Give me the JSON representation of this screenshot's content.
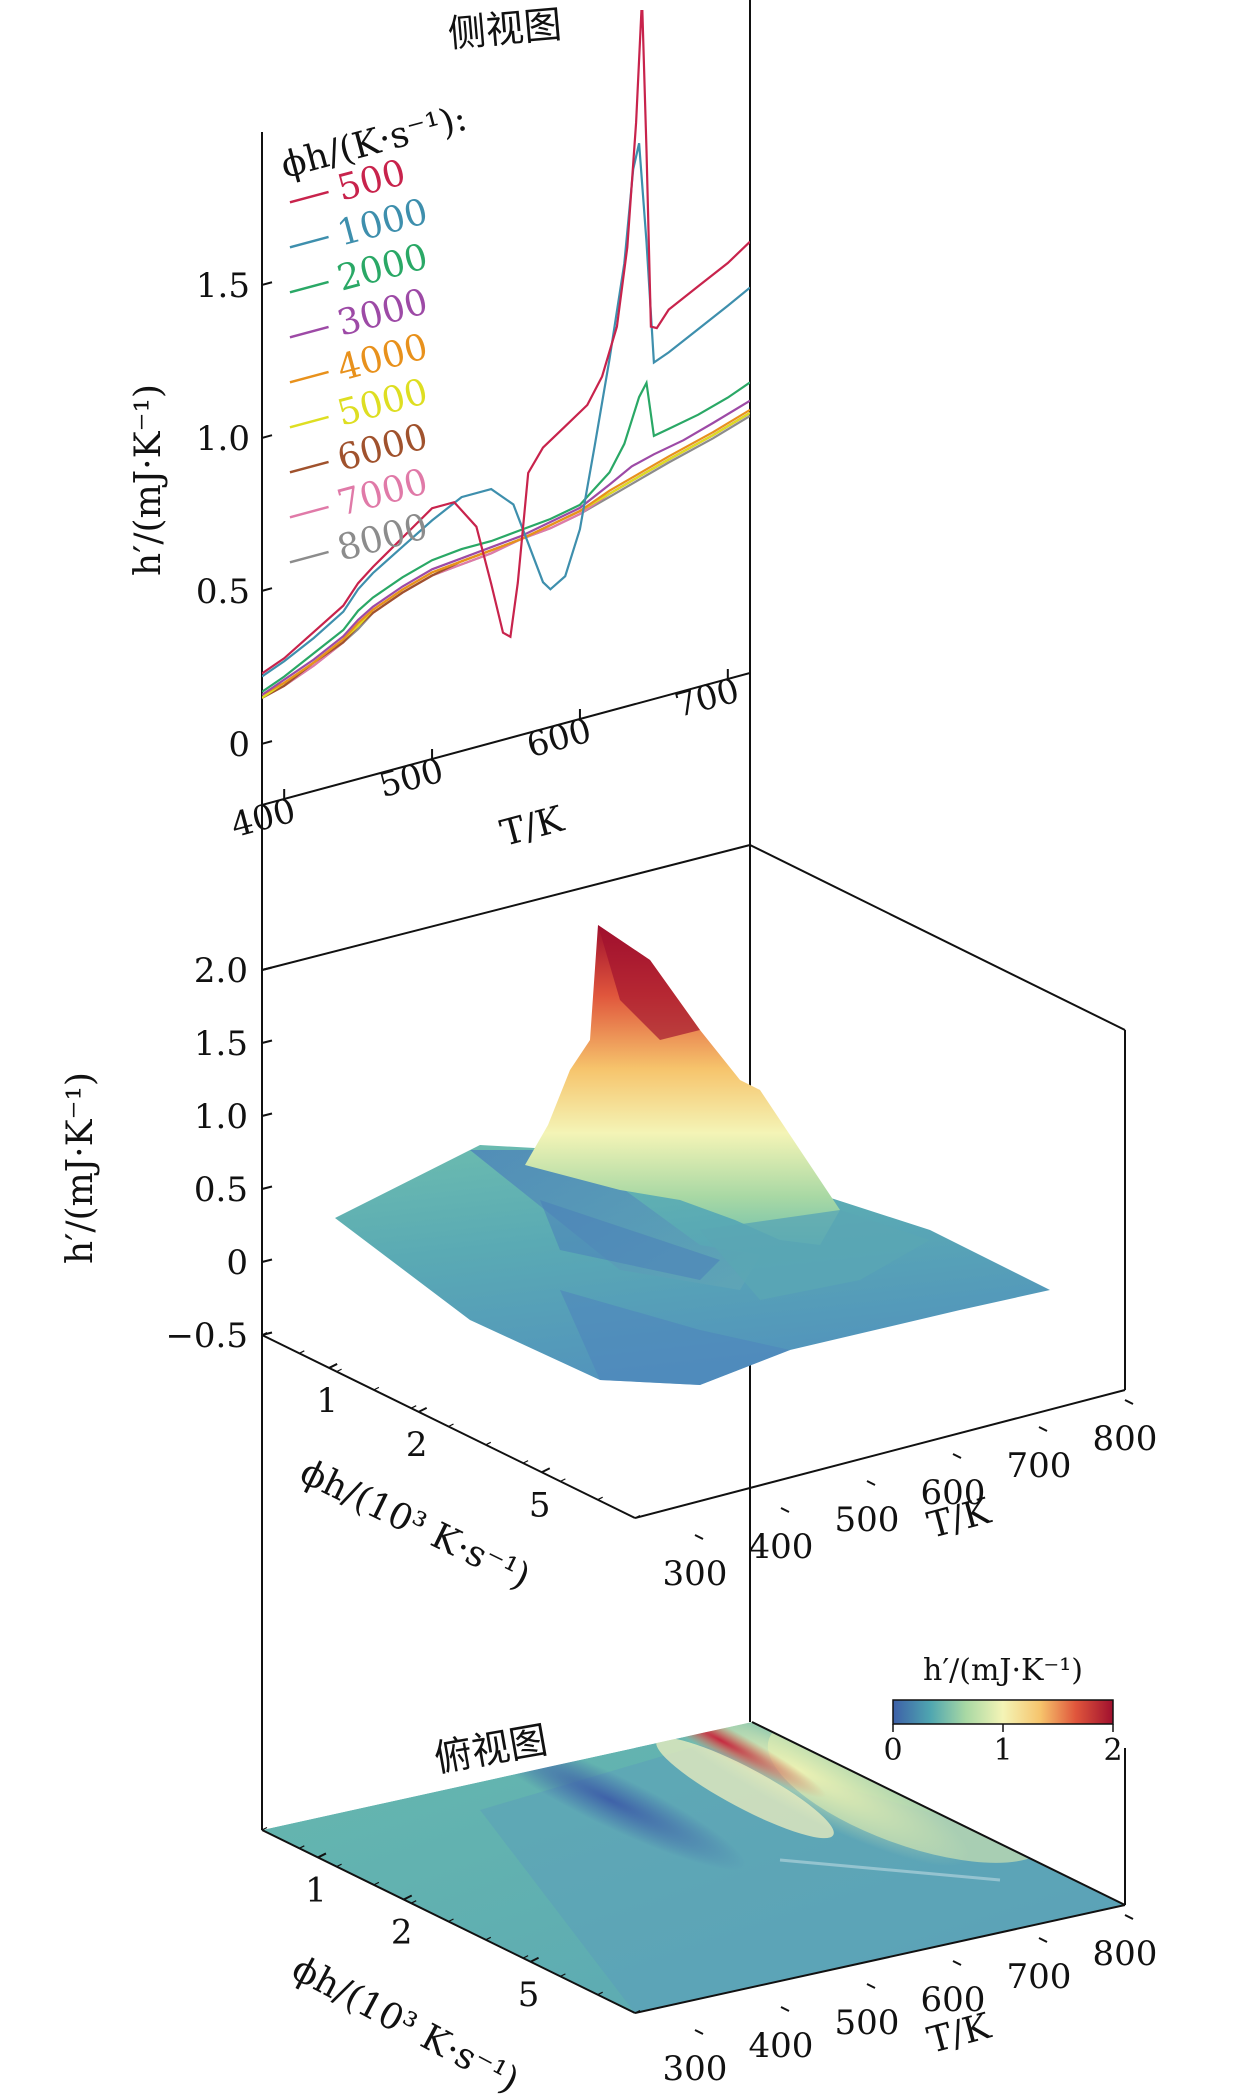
{
  "figure": {
    "side_panel_title": "侧视图",
    "top_panel_title": "俯视图"
  },
  "chart_data": [
    {
      "type": "line",
      "panel": "side-view",
      "title": "侧视图",
      "xlabel": "T/K",
      "ylabel": "h′/(mJ·K⁻¹)",
      "xlim": [
        385,
        715
      ],
      "ylim": [
        -0.2,
        2.0
      ],
      "xticks": [
        "400",
        "500",
        "600",
        "700"
      ],
      "yticks": [
        "0",
        "0.5",
        "1.0",
        "1.5"
      ],
      "legend_title": "ϕh/(K·s⁻¹):",
      "legend_position": "top-left",
      "grid": false,
      "series": [
        {
          "name": "500",
          "color": "#c8234c",
          "x": [
            385,
            400,
            420,
            440,
            450,
            460,
            480,
            500,
            515,
            530,
            540,
            548,
            553,
            558,
            565,
            575,
            590,
            605,
            615,
            625,
            632,
            638,
            642,
            645,
            648,
            652,
            660,
            680,
            700,
            715
          ],
          "y": [
            0.23,
            0.26,
            0.32,
            0.38,
            0.44,
            0.48,
            0.55,
            0.62,
            0.62,
            0.52,
            0.32,
            0.15,
            0.13,
            0.3,
            0.65,
            0.72,
            0.77,
            0.82,
            0.9,
            1.05,
            1.3,
            1.7,
            2.1,
            1.6,
            1.02,
            1.01,
            1.06,
            1.11,
            1.16,
            1.21
          ]
        },
        {
          "name": "1000",
          "color": "#3e8fad",
          "x": [
            385,
            400,
            420,
            440,
            450,
            460,
            480,
            500,
            520,
            540,
            555,
            565,
            575,
            580,
            590,
            600,
            610,
            620,
            630,
            636,
            640,
            645,
            650,
            660,
            680,
            700,
            715
          ],
          "y": [
            0.22,
            0.25,
            0.3,
            0.36,
            0.42,
            0.46,
            0.52,
            0.58,
            0.63,
            0.63,
            0.56,
            0.42,
            0.28,
            0.25,
            0.28,
            0.42,
            0.68,
            0.95,
            1.25,
            1.55,
            1.63,
            1.3,
            0.9,
            0.92,
            0.97,
            1.02,
            1.06
          ]
        },
        {
          "name": "2000",
          "color": "#2aa866",
          "x": [
            385,
            400,
            420,
            440,
            450,
            460,
            480,
            500,
            520,
            540,
            560,
            580,
            600,
            620,
            630,
            640,
            645,
            650,
            660,
            680,
            700,
            715
          ],
          "y": [
            0.17,
            0.2,
            0.25,
            0.3,
            0.35,
            0.38,
            0.42,
            0.45,
            0.46,
            0.46,
            0.47,
            0.48,
            0.5,
            0.58,
            0.66,
            0.8,
            0.84,
            0.66,
            0.67,
            0.69,
            0.72,
            0.75
          ]
        },
        {
          "name": "3000",
          "color": "#9d4aa6",
          "x": [
            385,
            400,
            420,
            440,
            450,
            460,
            480,
            500,
            520,
            540,
            560,
            580,
            600,
            620,
            635,
            650,
            670,
            690,
            715
          ],
          "y": [
            0.16,
            0.19,
            0.23,
            0.28,
            0.32,
            0.35,
            0.39,
            0.42,
            0.43,
            0.44,
            0.45,
            0.47,
            0.49,
            0.54,
            0.58,
            0.6,
            0.62,
            0.65,
            0.69
          ]
        },
        {
          "name": "4000",
          "color": "#e8911c",
          "x": [
            385,
            400,
            420,
            440,
            450,
            460,
            480,
            500,
            520,
            540,
            560,
            580,
            600,
            620,
            640,
            660,
            690,
            715
          ],
          "y": [
            0.16,
            0.18,
            0.22,
            0.27,
            0.31,
            0.34,
            0.38,
            0.41,
            0.42,
            0.43,
            0.44,
            0.46,
            0.48,
            0.52,
            0.55,
            0.58,
            0.62,
            0.66
          ]
        },
        {
          "name": "5000",
          "color": "#dede22",
          "x": [
            385,
            400,
            420,
            440,
            450,
            460,
            480,
            500,
            520,
            540,
            560,
            580,
            600,
            620,
            640,
            660,
            690,
            715
          ],
          "y": [
            0.15,
            0.18,
            0.22,
            0.27,
            0.3,
            0.34,
            0.38,
            0.41,
            0.42,
            0.43,
            0.44,
            0.46,
            0.48,
            0.51,
            0.54,
            0.57,
            0.61,
            0.65
          ]
        },
        {
          "name": "6000",
          "color": "#a0522d",
          "x": [
            385,
            400,
            420,
            440,
            450,
            460,
            480,
            500,
            520,
            540,
            560,
            580,
            600,
            620,
            640,
            660,
            690,
            715
          ],
          "y": [
            0.15,
            0.17,
            0.22,
            0.26,
            0.3,
            0.33,
            0.37,
            0.4,
            0.42,
            0.43,
            0.44,
            0.46,
            0.48,
            0.51,
            0.54,
            0.57,
            0.61,
            0.65
          ]
        },
        {
          "name": "7000",
          "color": "#e07aa8",
          "x": [
            385,
            400,
            420,
            440,
            450,
            460,
            480,
            500,
            520,
            540,
            560,
            580,
            600,
            620,
            640,
            660,
            690,
            715
          ],
          "y": [
            0.15,
            0.17,
            0.21,
            0.26,
            0.3,
            0.33,
            0.37,
            0.4,
            0.41,
            0.42,
            0.44,
            0.45,
            0.47,
            0.51,
            0.54,
            0.57,
            0.61,
            0.65
          ]
        },
        {
          "name": "8000",
          "color": "#8c8c8c",
          "x": [
            385,
            400,
            420,
            440,
            450,
            460,
            480,
            500,
            520,
            540,
            560,
            580,
            600,
            620,
            640,
            660,
            690,
            715
          ],
          "y": [
            0.15,
            0.17,
            0.21,
            0.26,
            0.29,
            0.33,
            0.37,
            0.4,
            0.41,
            0.42,
            0.44,
            0.45,
            0.47,
            0.5,
            0.53,
            0.56,
            0.6,
            0.64
          ]
        }
      ]
    },
    {
      "type": "surface",
      "panel": "3d-surface",
      "xlabel": "T/K",
      "ylabel": "ϕh/(10³ K·s⁻¹)",
      "zlabel": "h′/(mJ·K⁻¹)",
      "xticks": [
        "300",
        "400",
        "500",
        "600",
        "700",
        "800"
      ],
      "yticks": [
        "1",
        "2",
        "5"
      ],
      "zticks": [
        "−0.5",
        "0",
        "0.5",
        "1.0",
        "1.5",
        "2.0"
      ],
      "zlim": [
        -0.5,
        2.0
      ],
      "colormap": "Spectral_r"
    },
    {
      "type": "heatmap",
      "panel": "top-view",
      "title": "俯视图",
      "xlabel": "T/K",
      "ylabel": "ϕh/(10³ K·s⁻¹)",
      "xticks": [
        "300",
        "400",
        "500",
        "600",
        "700",
        "800"
      ],
      "yticks": [
        "1",
        "2",
        "5"
      ],
      "colorbar": {
        "label": "h′/(mJ·K⁻¹)",
        "ticks": [
          "0",
          "1",
          "2"
        ],
        "range": [
          0,
          2
        ],
        "colors": [
          "#3d60a8",
          "#4fa6b0",
          "#a8d8a4",
          "#f4f4b6",
          "#f6c46c",
          "#e0563c",
          "#a0102e"
        ]
      }
    }
  ]
}
